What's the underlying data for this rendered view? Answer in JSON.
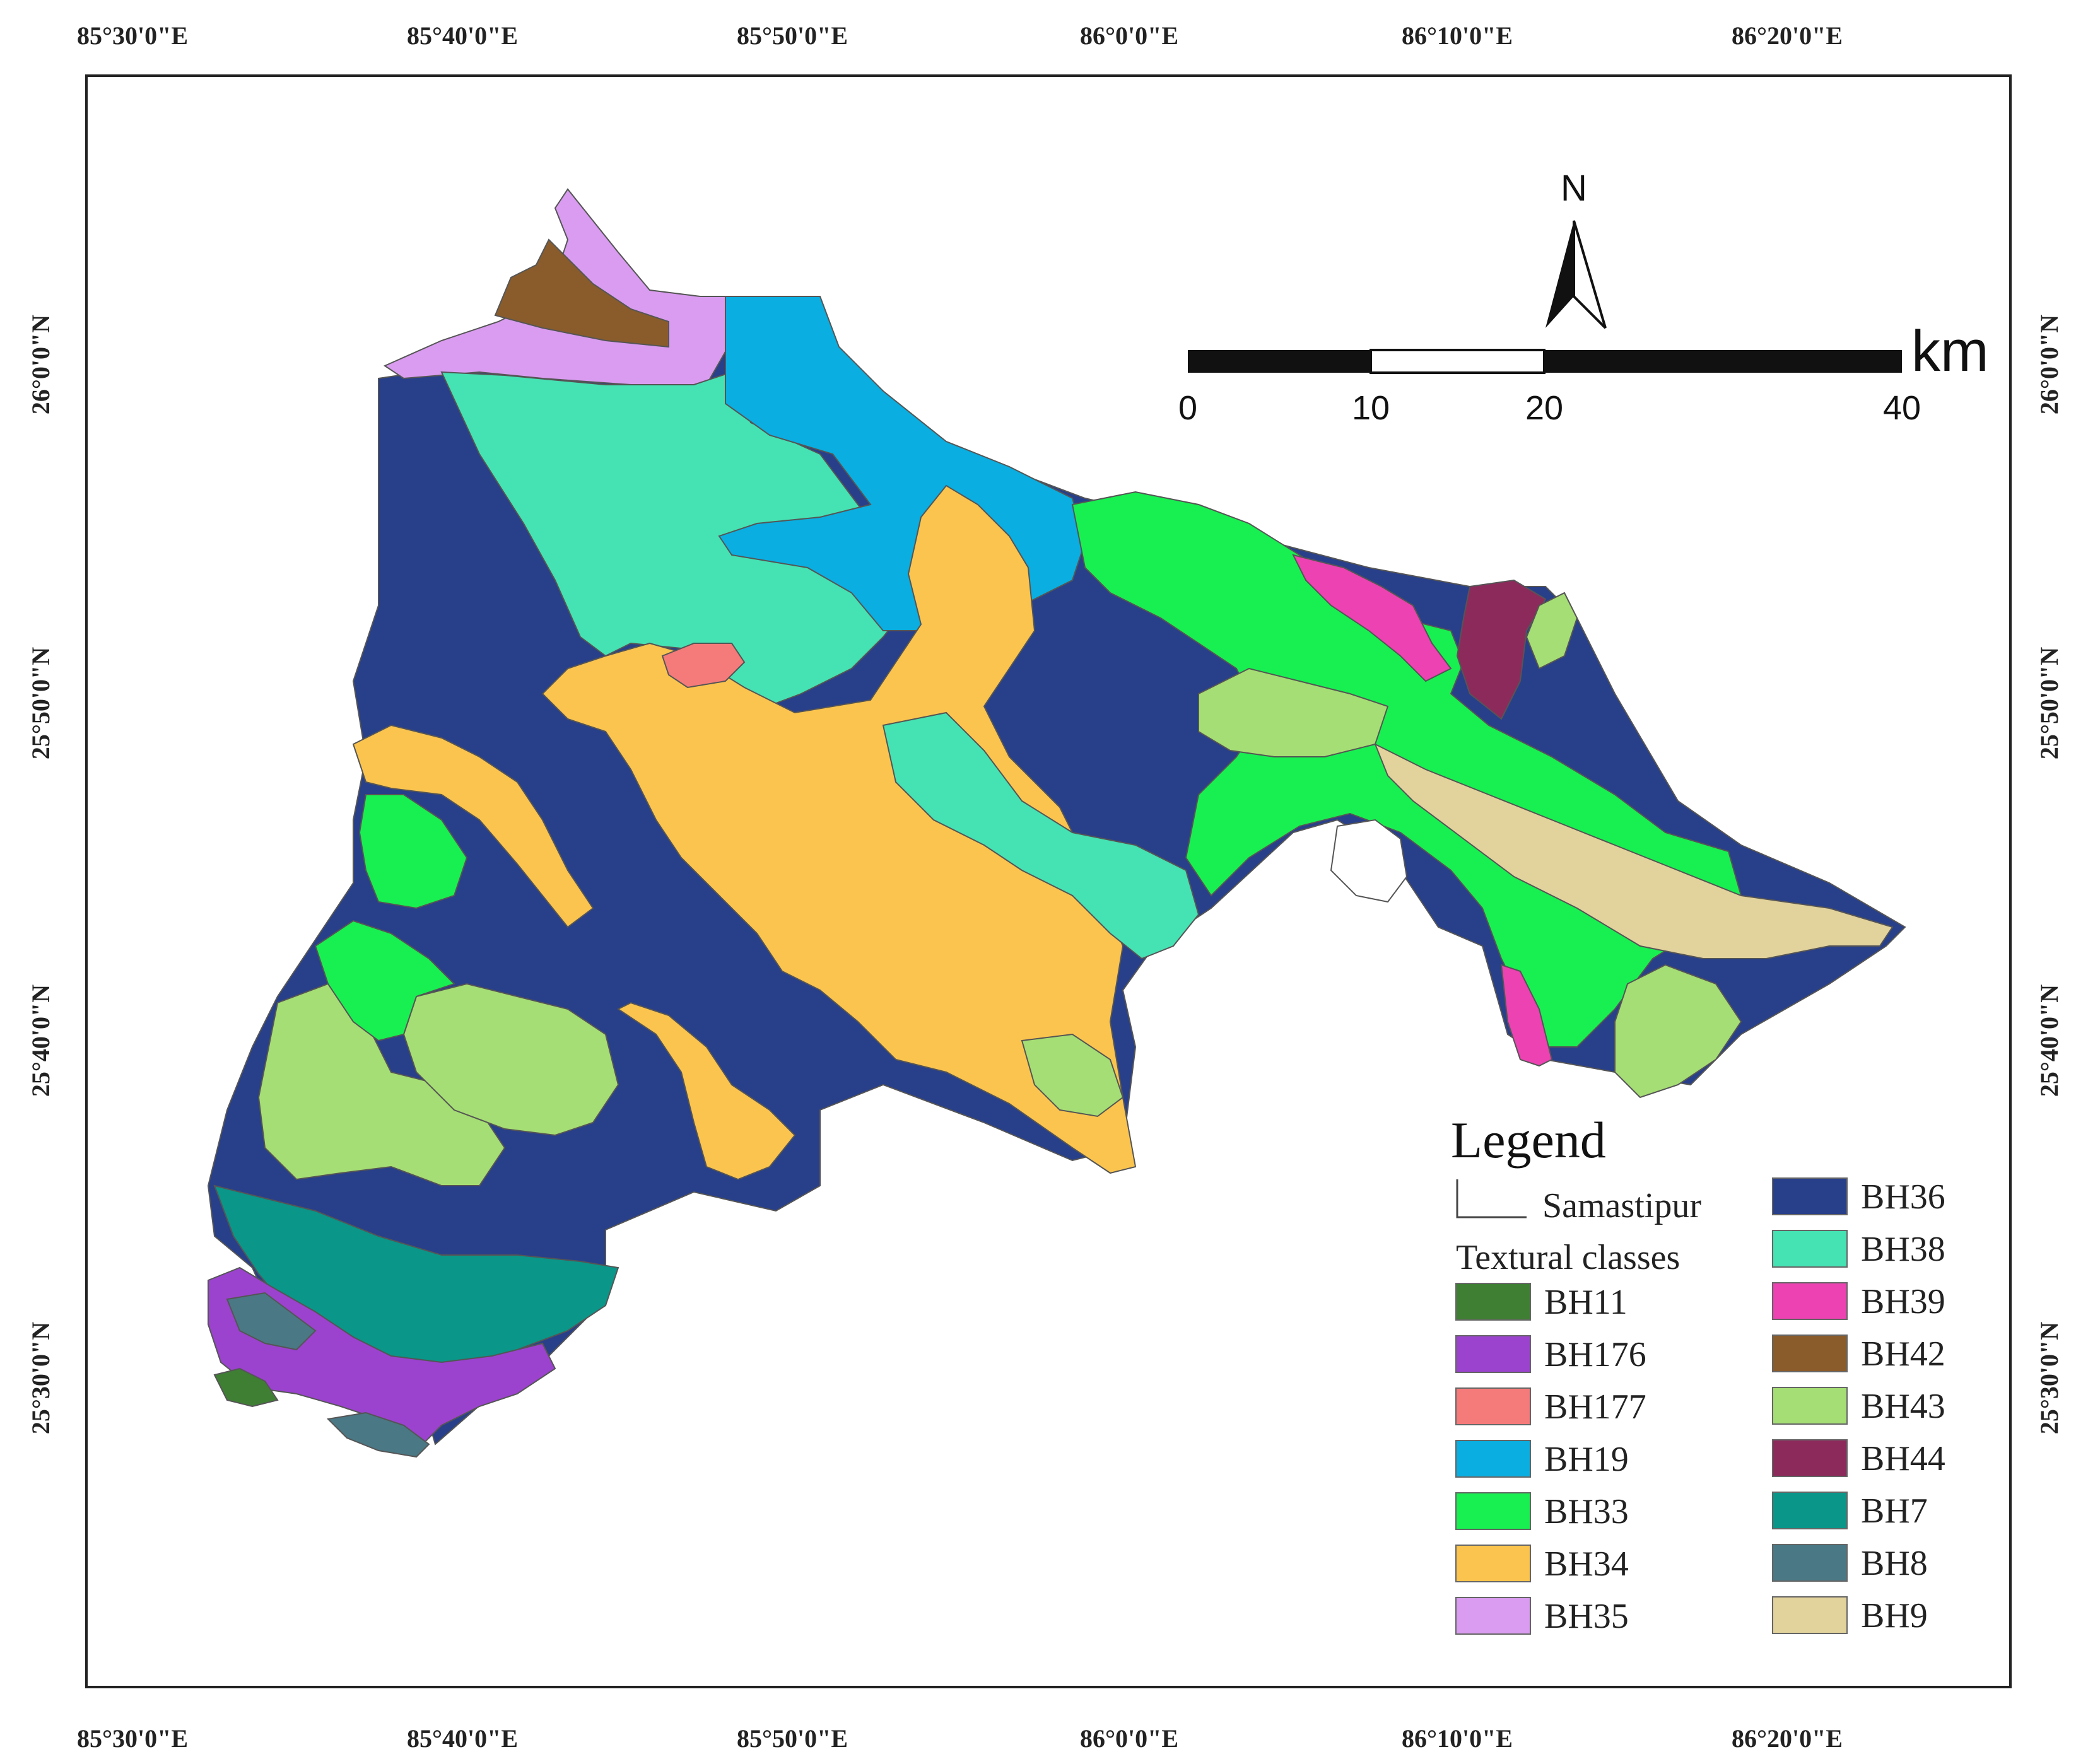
{
  "axes": {
    "top_ticks": [
      "85°30'0\"E",
      "85°40'0\"E",
      "85°50'0\"E",
      "86°0'0\"E",
      "86°10'0\"E",
      "86°20'0\"E"
    ],
    "bottom_ticks": [
      "85°30'0\"E",
      "85°40'0\"E",
      "85°50'0\"E",
      "86°0'0\"E",
      "86°10'0\"E",
      "86°20'0\"E"
    ],
    "left_ticks": [
      "26°0'0\"N",
      "25°50'0\"N",
      "25°40'0\"N",
      "25°30'0\"N"
    ],
    "right_ticks": [
      "26°0'0\"N",
      "25°50'0\"N",
      "25°40'0\"N",
      "25°30'0\"N"
    ]
  },
  "north_arrow": {
    "label": "N"
  },
  "scale_bar": {
    "unit": "km",
    "labels": [
      "0",
      "10",
      "20",
      "40"
    ]
  },
  "legend": {
    "title": "Legend",
    "boundary_label": "Samastipur",
    "classes_heading": "Textural classes",
    "classes": [
      {
        "label": "BH11",
        "color": "#3f7f34"
      },
      {
        "label": "BH176",
        "color": "#9b42cf"
      },
      {
        "label": "BH177",
        "color": "#f57a7a"
      },
      {
        "label": "BH19",
        "color": "#0aaee0"
      },
      {
        "label": "BH33",
        "color": "#17f050"
      },
      {
        "label": "BH34",
        "color": "#fbc44e"
      },
      {
        "label": "BH35",
        "color": "#d99cf0"
      },
      {
        "label": "BH36",
        "color": "#283f8a"
      },
      {
        "label": "BH38",
        "color": "#45e2b3"
      },
      {
        "label": "BH39",
        "color": "#ec42b2"
      },
      {
        "label": "BH42",
        "color": "#8a5c2b"
      },
      {
        "label": "BH43",
        "color": "#a5de74"
      },
      {
        "label": "BH44",
        "color": "#8c2b5b"
      },
      {
        "label": "BH7",
        "color": "#0a9689"
      },
      {
        "label": "BH8",
        "color": "#4a7885"
      },
      {
        "label": "BH9",
        "color": "#e2d29c"
      }
    ]
  }
}
